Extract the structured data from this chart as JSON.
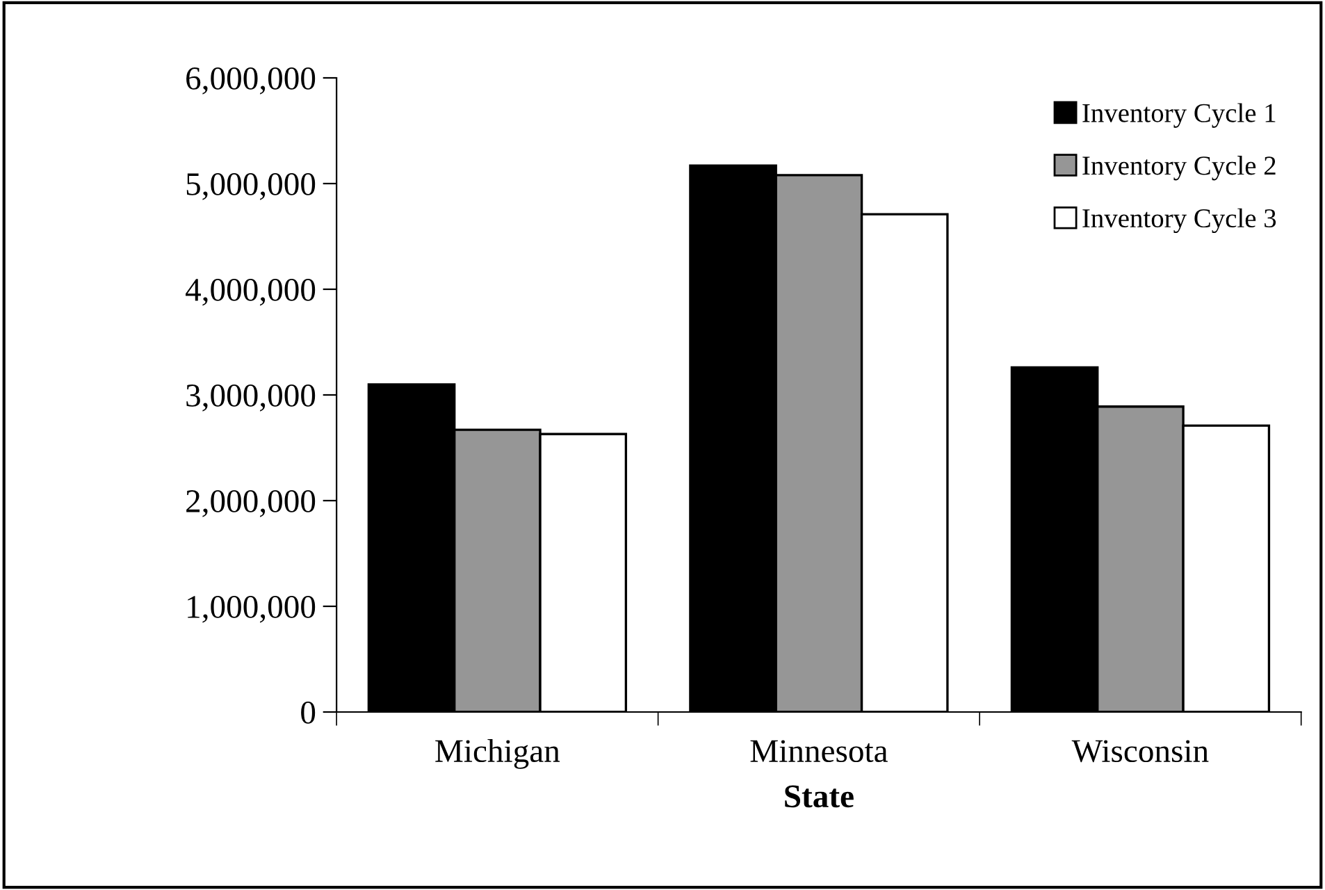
{
  "chart_data": {
    "type": "bar",
    "xlabel": "State",
    "categories": [
      "Michigan",
      "Minnesota",
      "Wisconsin"
    ],
    "series": [
      {
        "name": "Inventory Cycle 1",
        "color": "#000000",
        "values": [
          3100000,
          5170000,
          3260000
        ]
      },
      {
        "name": "Inventory Cycle 2",
        "color": "#969696",
        "values": [
          2670000,
          5080000,
          2890000
        ]
      },
      {
        "name": "Inventory Cycle 3",
        "color": "#ffffff",
        "values": [
          2630000,
          4710000,
          2710000
        ]
      }
    ],
    "ylim": [
      0,
      6000000
    ],
    "yticks": [
      {
        "value": 0,
        "label": "0"
      },
      {
        "value": 1000000,
        "label": "1,000,000"
      },
      {
        "value": 2000000,
        "label": "2,000,000"
      },
      {
        "value": 3000000,
        "label": "3,000,000"
      },
      {
        "value": 4000000,
        "label": "4,000,000"
      },
      {
        "value": 5000000,
        "label": "5,000,000"
      },
      {
        "value": 6000000,
        "label": "6,000,000"
      }
    ],
    "grid": false,
    "legend": "top right"
  }
}
